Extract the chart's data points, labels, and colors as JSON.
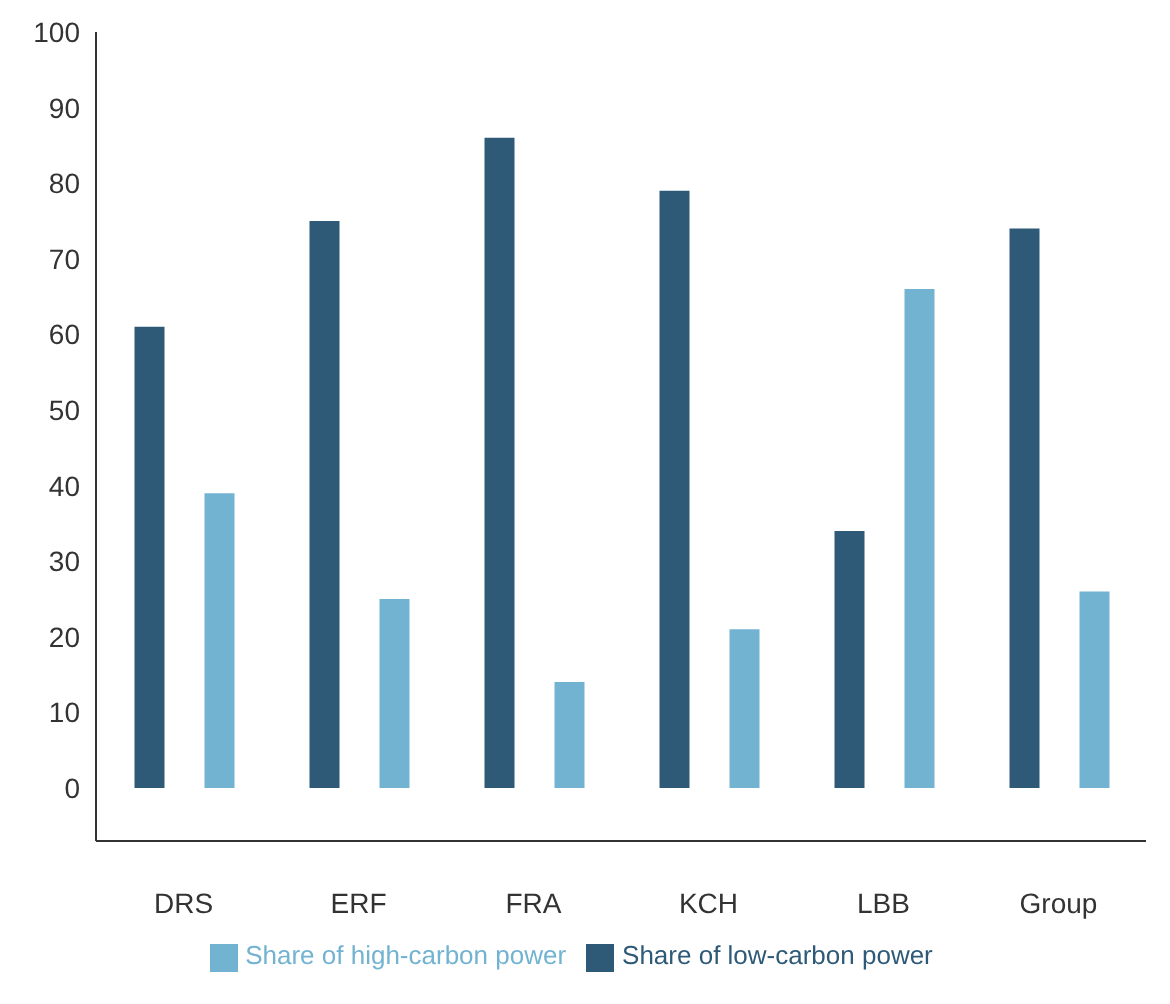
{
  "chart_data": {
    "type": "bar",
    "categories": [
      "DRS",
      "ERF",
      "FRA",
      "KCH",
      "LBB",
      "Group"
    ],
    "series": [
      {
        "name": "Share of low-carbon power",
        "color": "#2e5a78",
        "values": [
          61,
          75,
          86,
          79,
          34,
          74
        ]
      },
      {
        "name": "Share of high-carbon power",
        "color": "#72b3d1",
        "values": [
          39,
          25,
          14,
          21,
          66,
          26
        ]
      }
    ],
    "ylim": [
      -7,
      100
    ],
    "yticks": [
      0,
      10,
      20,
      30,
      40,
      50,
      60,
      70,
      80,
      90,
      100
    ],
    "grid": false,
    "legend": "bottom"
  }
}
